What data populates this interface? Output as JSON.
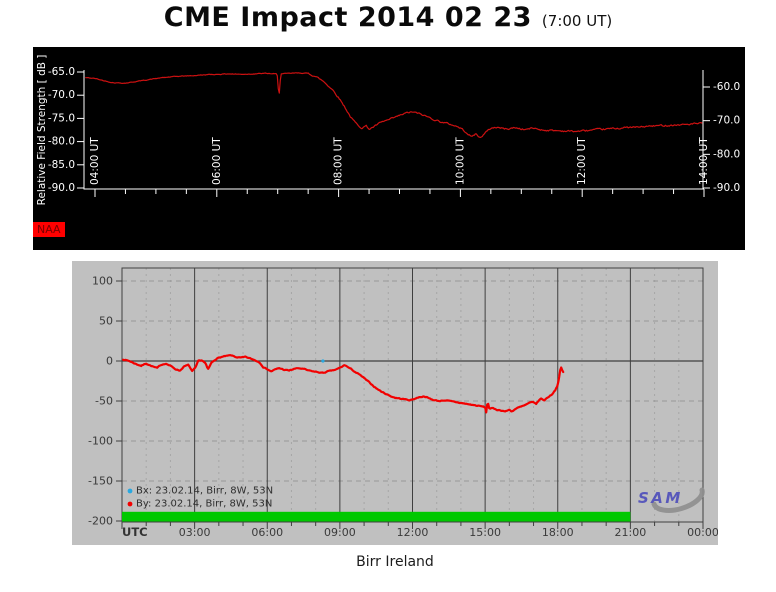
{
  "title": {
    "main": "CME Impact 2014 02 23",
    "sub": "(7:00 UT)"
  },
  "caption": "Birr Ireland",
  "colors": {
    "page_bg": "#ffffff",
    "vlf_bg": "#000000",
    "vlf_text": "#ffffff",
    "vlf_line": "#cc1111",
    "station_badge_bg": "#ff0000",
    "station_badge_text": "#7a0000",
    "mag_bg": "#c0c0c0",
    "grid_major": "#3f3f3f",
    "grid_minor": "#a6a6a6",
    "mag_text": "#3a3a3a",
    "bx_color": "#29a8e0",
    "by_color": "#f20000",
    "status_bar_green": "#00c800",
    "logo_text_color": "#4d4dbb",
    "logo_swoosh_color": "#8f8f8f"
  },
  "chart_data": [
    {
      "type": "line",
      "name": "vlf-relative-field-strength",
      "station_label": "NAA",
      "ylabel": "Relative Field Strength [ dB ]",
      "x_unit": "UT",
      "x_ticks": [
        {
          "hour": 4,
          "label": "04:00 UT"
        },
        {
          "hour": 6,
          "label": "06:00 UT"
        },
        {
          "hour": 8,
          "label": "08:00 UT"
        },
        {
          "hour": 10,
          "label": "10:00 UT"
        },
        {
          "hour": 12,
          "label": "12:00 UT"
        },
        {
          "hour": 14,
          "label": "14:00 UT"
        }
      ],
      "left_axis": {
        "range": [
          -65,
          -90
        ],
        "ticks": [
          {
            "v": -65,
            "label": "-65.0"
          },
          {
            "v": -70,
            "label": "-70.0"
          },
          {
            "v": -75,
            "label": "-75.0"
          },
          {
            "v": -80,
            "label": "-80.0"
          },
          {
            "v": -85,
            "label": "-85.0"
          },
          {
            "v": -90,
            "label": "-90.0"
          }
        ]
      },
      "right_axis": {
        "range": [
          -60,
          -90
        ],
        "ticks": [
          {
            "v": -60,
            "label": "-60.0"
          },
          {
            "v": -70,
            "label": "-70.0"
          },
          {
            "v": -80,
            "label": "-80.0"
          },
          {
            "v": -90,
            "label": "-90.0"
          }
        ]
      },
      "series": [
        {
          "name": "NAA",
          "color": "#cc1111",
          "points_h_db": [
            [
              3.84,
              -66.2
            ],
            [
              4.0,
              -66.4
            ],
            [
              4.15,
              -66.9
            ],
            [
              4.3,
              -67.3
            ],
            [
              4.5,
              -67.4
            ],
            [
              4.65,
              -67.1
            ],
            [
              4.8,
              -66.8
            ],
            [
              5.0,
              -66.4
            ],
            [
              5.2,
              -66.1
            ],
            [
              5.4,
              -65.9
            ],
            [
              5.6,
              -65.8
            ],
            [
              5.8,
              -65.6
            ],
            [
              6.0,
              -65.5
            ],
            [
              6.2,
              -65.4
            ],
            [
              6.4,
              -65.5
            ],
            [
              6.6,
              -65.4
            ],
            [
              6.8,
              -65.3
            ],
            [
              6.95,
              -65.4
            ],
            [
              6.99,
              -65.4
            ],
            [
              7.02,
              -70.5
            ],
            [
              7.05,
              -65.4
            ],
            [
              7.2,
              -65.3
            ],
            [
              7.35,
              -65.2
            ],
            [
              7.5,
              -65.3
            ],
            [
              7.6,
              -65.8
            ],
            [
              7.75,
              -67.0
            ],
            [
              7.9,
              -68.8
            ],
            [
              8.0,
              -70.5
            ],
            [
              8.1,
              -72.5
            ],
            [
              8.2,
              -74.8
            ],
            [
              8.3,
              -76.3
            ],
            [
              8.38,
              -77.0
            ],
            [
              8.45,
              -76.6
            ],
            [
              8.5,
              -77.3
            ],
            [
              8.58,
              -76.8
            ],
            [
              8.65,
              -76.2
            ],
            [
              8.75,
              -75.6
            ],
            [
              8.85,
              -75.2
            ],
            [
              9.0,
              -74.4
            ],
            [
              9.1,
              -73.9
            ],
            [
              9.2,
              -73.6
            ],
            [
              9.3,
              -73.9
            ],
            [
              9.45,
              -74.6
            ],
            [
              9.6,
              -75.4
            ],
            [
              9.75,
              -76.0
            ],
            [
              9.9,
              -76.5
            ],
            [
              10.0,
              -77.1
            ],
            [
              10.1,
              -78.0
            ],
            [
              10.18,
              -79.0
            ],
            [
              10.25,
              -78.3
            ],
            [
              10.32,
              -79.2
            ],
            [
              10.4,
              -78.2
            ],
            [
              10.5,
              -77.1
            ],
            [
              10.6,
              -76.9
            ],
            [
              10.75,
              -77.3
            ],
            [
              10.9,
              -77.0
            ],
            [
              11.05,
              -77.4
            ],
            [
              11.2,
              -77.1
            ],
            [
              11.35,
              -77.5
            ],
            [
              11.5,
              -77.6
            ],
            [
              11.7,
              -77.7
            ],
            [
              11.9,
              -77.8
            ],
            [
              12.1,
              -77.6
            ],
            [
              12.3,
              -77.4
            ],
            [
              12.5,
              -77.2
            ],
            [
              12.7,
              -77.0
            ],
            [
              12.9,
              -76.9
            ],
            [
              13.1,
              -76.7
            ],
            [
              13.35,
              -76.5
            ],
            [
              13.6,
              -76.4
            ],
            [
              13.8,
              -76.2
            ],
            [
              13.98,
              -76.1
            ]
          ]
        }
      ]
    },
    {
      "type": "line",
      "name": "magnetometer-birr",
      "x_axis_label": "UTC",
      "x_ticks": [
        {
          "hour": 3,
          "label": "03:00"
        },
        {
          "hour": 6,
          "label": "06:00"
        },
        {
          "hour": 9,
          "label": "09:00"
        },
        {
          "hour": 12,
          "label": "12:00"
        },
        {
          "hour": 15,
          "label": "15:00"
        },
        {
          "hour": 18,
          "label": "18:00"
        },
        {
          "hour": 21,
          "label": "21:00"
        },
        {
          "hour": 24,
          "label": "00:00"
        }
      ],
      "y_ticks": [
        {
          "v": 100,
          "label": "100"
        },
        {
          "v": 50,
          "label": "50"
        },
        {
          "v": 0,
          "label": "0"
        },
        {
          "v": -50,
          "label": "-50"
        },
        {
          "v": -100,
          "label": "-100"
        },
        {
          "v": -150,
          "label": "-150"
        },
        {
          "v": -200,
          "label": "-200"
        }
      ],
      "ylim": [
        -200,
        116
      ],
      "xlim_hours": [
        0,
        24
      ],
      "grid": "on",
      "legend_position": "bottom-left",
      "legend": [
        {
          "label": "Bx: 23.02.14, Birr, 8W, 53N",
          "color": "#29a8e0"
        },
        {
          "label": "By: 23.02.14, Birr, 8W, 53N",
          "color": "#f20000"
        }
      ],
      "status_bar": {
        "start_hour": 0,
        "end_hour": 21,
        "color": "#00c800"
      },
      "logo_text": "SAM",
      "series": [
        {
          "name": "Bx",
          "color": "#29a8e0",
          "points_h_nt": [
            [
              8.3,
              0
            ]
          ]
        },
        {
          "name": "By",
          "color": "#f20000",
          "points_h_nt": [
            [
              0.05,
              2
            ],
            [
              0.3,
              0
            ],
            [
              0.6,
              -4
            ],
            [
              0.8,
              -6
            ],
            [
              1.0,
              -3
            ],
            [
              1.2,
              -6
            ],
            [
              1.45,
              -9
            ],
            [
              1.6,
              -5
            ],
            [
              1.8,
              -3
            ],
            [
              2.0,
              -6
            ],
            [
              2.2,
              -10
            ],
            [
              2.4,
              -12
            ],
            [
              2.55,
              -7
            ],
            [
              2.75,
              -5
            ],
            [
              2.9,
              -13
            ],
            [
              3.05,
              -8
            ],
            [
              3.15,
              0
            ],
            [
              3.3,
              1
            ],
            [
              3.45,
              -3
            ],
            [
              3.55,
              -11
            ],
            [
              3.7,
              -2
            ],
            [
              3.9,
              3
            ],
            [
              4.1,
              5
            ],
            [
              4.3,
              6
            ],
            [
              4.5,
              7
            ],
            [
              4.7,
              5
            ],
            [
              4.9,
              4
            ],
            [
              5.1,
              5
            ],
            [
              5.3,
              3
            ],
            [
              5.5,
              1
            ],
            [
              5.7,
              -2
            ],
            [
              5.85,
              -8
            ],
            [
              6.0,
              -10
            ],
            [
              6.15,
              -13
            ],
            [
              6.3,
              -11
            ],
            [
              6.5,
              -9
            ],
            [
              6.7,
              -11
            ],
            [
              6.9,
              -12
            ],
            [
              7.1,
              -10
            ],
            [
              7.3,
              -9
            ],
            [
              7.5,
              -10
            ],
            [
              7.7,
              -12
            ],
            [
              7.9,
              -13
            ],
            [
              8.1,
              -14
            ],
            [
              8.3,
              -15
            ],
            [
              8.5,
              -13
            ],
            [
              8.7,
              -12
            ],
            [
              8.9,
              -10
            ],
            [
              9.05,
              -8
            ],
            [
              9.2,
              -5
            ],
            [
              9.35,
              -8
            ],
            [
              9.5,
              -11
            ],
            [
              9.7,
              -15
            ],
            [
              9.9,
              -19
            ],
            [
              10.1,
              -24
            ],
            [
              10.3,
              -29
            ],
            [
              10.5,
              -34
            ],
            [
              10.7,
              -38
            ],
            [
              10.9,
              -41
            ],
            [
              11.1,
              -44
            ],
            [
              11.3,
              -46
            ],
            [
              11.5,
              -47
            ],
            [
              11.7,
              -48
            ],
            [
              11.9,
              -49
            ],
            [
              12.1,
              -47
            ],
            [
              12.3,
              -45
            ],
            [
              12.5,
              -44
            ],
            [
              12.7,
              -47
            ],
            [
              12.9,
              -49
            ],
            [
              13.1,
              -50
            ],
            [
              13.3,
              -49
            ],
            [
              13.5,
              -50
            ],
            [
              13.7,
              -51
            ],
            [
              13.9,
              -52
            ],
            [
              14.1,
              -53
            ],
            [
              14.3,
              -54
            ],
            [
              14.5,
              -55
            ],
            [
              14.7,
              -56
            ],
            [
              14.9,
              -57
            ],
            [
              15.0,
              -58
            ],
            [
              15.05,
              -65
            ],
            [
              15.1,
              -50
            ],
            [
              15.18,
              -60
            ],
            [
              15.3,
              -59
            ],
            [
              15.5,
              -61
            ],
            [
              15.7,
              -62
            ],
            [
              15.85,
              -63
            ],
            [
              16.0,
              -61
            ],
            [
              16.1,
              -63
            ],
            [
              16.25,
              -60
            ],
            [
              16.4,
              -58
            ],
            [
              16.6,
              -56
            ],
            [
              16.8,
              -53
            ],
            [
              17.0,
              -51
            ],
            [
              17.1,
              -54
            ],
            [
              17.2,
              -50
            ],
            [
              17.3,
              -47
            ],
            [
              17.45,
              -49
            ],
            [
              17.6,
              -45
            ],
            [
              17.75,
              -42
            ],
            [
              17.9,
              -36
            ],
            [
              18.0,
              -30
            ],
            [
              18.05,
              -22
            ],
            [
              18.1,
              -12
            ],
            [
              18.15,
              -8
            ],
            [
              18.2,
              -13
            ],
            [
              18.25,
              -15
            ]
          ]
        }
      ]
    }
  ]
}
